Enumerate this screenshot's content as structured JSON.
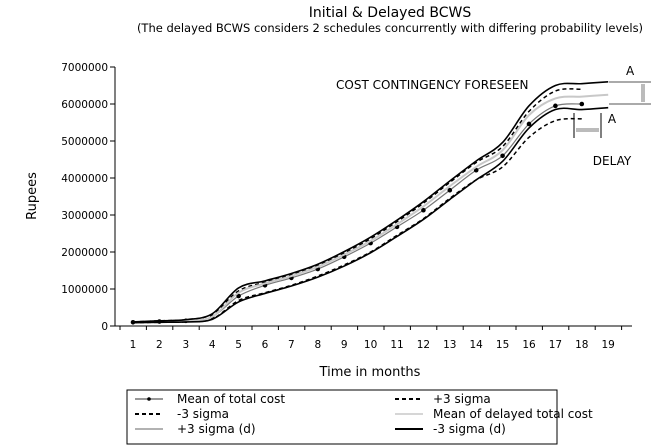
{
  "chart_data": {
    "type": "line",
    "title": "Initial & Delayed BCWS",
    "subtitle": "(The delayed BCWS considers 2 schedules concurrently with differing probability levels)",
    "xlabel": "Time in months",
    "ylabel": "Rupees",
    "xlim": [
      1,
      19
    ],
    "ylim": [
      0,
      7000000
    ],
    "x_ticks": [
      "1",
      "2",
      "3",
      "4",
      "5",
      "6",
      "7",
      "8",
      "9",
      "10",
      "11",
      "12",
      "13",
      "14",
      "15",
      "16",
      "17",
      "18",
      "19"
    ],
    "y_ticks": [
      "0",
      "1000000",
      "2000000",
      "3000000",
      "4000000",
      "5000000",
      "6000000",
      "7000000"
    ],
    "grid": false,
    "legend_position": "bottom",
    "series": [
      {
        "name": "Mean of total cost",
        "style": "gray-line-dot-markers",
        "x": [
          1,
          2,
          3,
          4,
          5,
          6,
          7,
          8,
          9,
          10,
          11,
          12,
          13,
          14,
          15,
          16,
          17,
          18
        ],
        "values": [
          100000,
          120000,
          140000,
          250000,
          810000,
          1100000,
          1300000,
          1540000,
          1870000,
          2240000,
          2680000,
          3130000,
          3670000,
          4210000,
          4600000,
          5460000,
          5950000,
          6000000
        ]
      },
      {
        "name": "+3 sigma",
        "style": "black-dashed",
        "x": [
          1,
          2,
          3,
          4,
          5,
          6,
          7,
          8,
          9,
          10,
          11,
          12,
          13,
          14,
          15,
          16,
          17,
          18
        ],
        "values": [
          110000,
          140000,
          170000,
          320000,
          950000,
          1180000,
          1380000,
          1630000,
          1970000,
          2360000,
          2820000,
          3320000,
          3880000,
          4420000,
          4850000,
          5800000,
          6350000,
          6400000
        ]
      },
      {
        "name": "-3 sigma",
        "style": "black-dashed",
        "x": [
          1,
          2,
          3,
          4,
          5,
          6,
          7,
          8,
          9,
          10,
          11,
          12,
          13,
          14,
          15,
          16,
          17,
          18
        ],
        "values": [
          90000,
          100000,
          110000,
          190000,
          690000,
          900000,
          1100000,
          1350000,
          1650000,
          2000000,
          2450000,
          2900000,
          3450000,
          3950000,
          4300000,
          5100000,
          5550000,
          5600000
        ]
      },
      {
        "name": "Mean of delayed total cost",
        "style": "light-gray",
        "x": [
          1,
          2,
          3,
          4,
          5,
          6,
          7,
          8,
          9,
          10,
          11,
          12,
          13,
          14,
          15,
          16,
          17,
          18,
          19
        ],
        "values": [
          100000,
          120000,
          140000,
          250000,
          900000,
          1150000,
          1350000,
          1600000,
          1930000,
          2300000,
          2750000,
          3230000,
          3780000,
          4300000,
          4750000,
          5700000,
          6150000,
          6200000,
          6250000
        ]
      },
      {
        "name": "+3 sigma (d)",
        "style": "black-solid-upper",
        "x": [
          1,
          2,
          3,
          4,
          5,
          6,
          7,
          8,
          9,
          10,
          11,
          12,
          13,
          14,
          15,
          16,
          17,
          18,
          19
        ],
        "values": [
          110000,
          140000,
          170000,
          330000,
          1030000,
          1220000,
          1420000,
          1670000,
          2010000,
          2400000,
          2860000,
          3360000,
          3920000,
          4460000,
          4960000,
          5950000,
          6500000,
          6550000,
          6600000
        ]
      },
      {
        "name": "-3 sigma (d)",
        "style": "black-solid",
        "x": [
          1,
          2,
          3,
          4,
          5,
          6,
          7,
          8,
          9,
          10,
          11,
          12,
          13,
          14,
          15,
          16,
          17,
          18,
          19
        ],
        "values": [
          90000,
          100000,
          110000,
          180000,
          650000,
          880000,
          1080000,
          1320000,
          1620000,
          1980000,
          2420000,
          2880000,
          3420000,
          3950000,
          4450000,
          5350000,
          5850000,
          5850000,
          5900000
        ]
      }
    ],
    "annotations": [
      {
        "text": "COST CONTINGENCY FORESEEN"
      },
      {
        "text": "A",
        "note": "vertical arrow between upper curve and mean at month 19"
      },
      {
        "text": "A",
        "note": "horizontal arrow between month 18 and 19"
      },
      {
        "text": "DELAY"
      }
    ]
  },
  "legend": [
    {
      "label": "Mean of total cost",
      "style": "marker"
    },
    {
      "label": "+3 sigma",
      "style": "dash"
    },
    {
      "label": "-3 sigma",
      "style": "dash"
    },
    {
      "label": "Mean of delayed total cost",
      "style": "light"
    },
    {
      "label": "+3 sigma (d)",
      "style": "gray"
    },
    {
      "label": "-3 sigma (d)",
      "style": "black"
    }
  ],
  "colors": {
    "mean": "#777777",
    "delayed_mean": "#c8c8c8",
    "gray": "#999999",
    "black": "#000000"
  }
}
